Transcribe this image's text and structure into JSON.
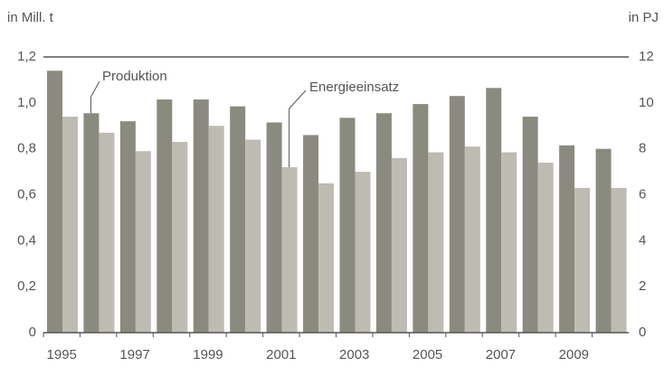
{
  "chart_data": {
    "type": "bar",
    "y_label": "in Mill. t",
    "y2_label": "in PJ",
    "categories": [
      "1995",
      null,
      "1997",
      null,
      "1999",
      null,
      "2001",
      null,
      "2003",
      null,
      "2005",
      null,
      "2007",
      null,
      "2009",
      null
    ],
    "series": [
      {
        "name": "Produktion",
        "color": "#8a8a7e",
        "values": [
          1.14,
          0.955,
          0.92,
          1.015,
          1.015,
          0.985,
          0.915,
          0.86,
          0.935,
          0.955,
          0.995,
          1.03,
          1.065,
          0.94,
          0.815,
          0.8
        ]
      },
      {
        "name": "Energieeinsatz",
        "color": "#bdbbb2",
        "axis": "y2",
        "values": [
          9.4,
          8.7,
          7.9,
          8.3,
          9.0,
          8.4,
          7.2,
          6.5,
          7.0,
          7.6,
          7.85,
          8.1,
          7.85,
          7.4,
          6.3,
          6.3
        ]
      }
    ],
    "ylim": [
      0,
      1.2
    ],
    "yticks": [
      0,
      {
        "value": 0.2,
        "label": "0,2"
      },
      {
        "value": 0.4,
        "label": "0,4"
      },
      {
        "value": 0.6,
        "label": "0,6"
      },
      {
        "value": 0.8,
        "label": "0,8"
      },
      {
        "value": 1.0,
        "label": "1,0"
      },
      {
        "value": 1.2,
        "label": "1,2"
      }
    ],
    "y2lim": [
      0,
      12
    ],
    "y2ticks": [
      0,
      2,
      4,
      6,
      8,
      10,
      12
    ]
  }
}
